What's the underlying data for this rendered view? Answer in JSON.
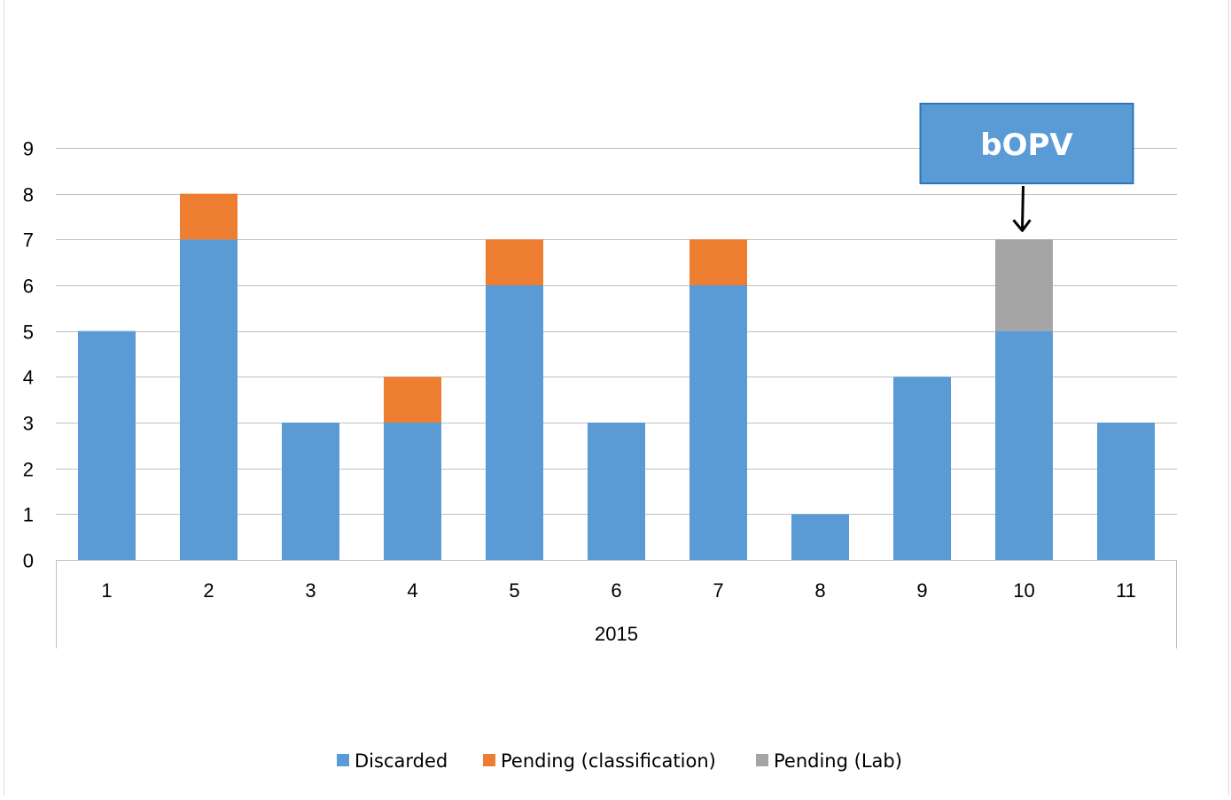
{
  "chart_data": {
    "type": "bar",
    "stacked": true,
    "title": "",
    "xlabel": "",
    "ylabel": "",
    "categories": [
      "1",
      "2",
      "3",
      "4",
      "5",
      "6",
      "7",
      "8",
      "9",
      "10",
      "11"
    ],
    "group_label": "2015",
    "ylim": [
      0,
      9
    ],
    "yticks": [
      0,
      1,
      2,
      3,
      4,
      5,
      6,
      7,
      8,
      9
    ],
    "grid": true,
    "legend_position": "bottom",
    "series": [
      {
        "name": "Discarded",
        "color": "#5B9BD5",
        "values": [
          5,
          7,
          3,
          3,
          6,
          3,
          6,
          1,
          4,
          5,
          3
        ]
      },
      {
        "name": "Pending (classification)",
        "color": "#ED7D31",
        "values": [
          0,
          1,
          0,
          1,
          1,
          0,
          1,
          0,
          0,
          0,
          0
        ]
      },
      {
        "name": "Pending (Lab)",
        "color": "#A5A5A5",
        "values": [
          0,
          0,
          0,
          0,
          0,
          0,
          0,
          0,
          0,
          2,
          0
        ]
      }
    ],
    "annotations": [
      {
        "text": "bOPV",
        "category": "10",
        "box_color": "#5B9BD5",
        "border_color": "#2E75B6"
      }
    ]
  }
}
